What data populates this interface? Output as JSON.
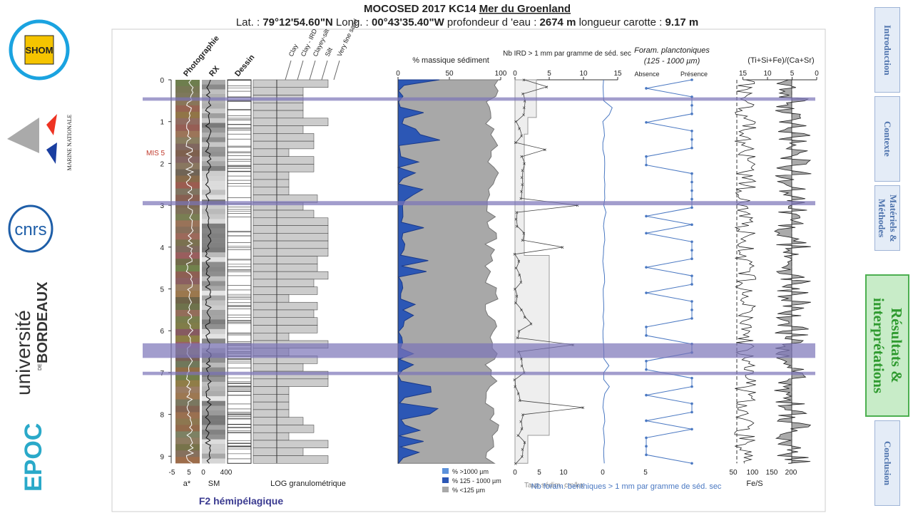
{
  "header": {
    "title_parts": [
      "MOCOSED 2017 KC14 ",
      "Mer du Groenland"
    ],
    "subtitle_parts": [
      "Lat. : ",
      "79°12'54.60\"N",
      " Long. : ",
      "00°43'35.40\"W",
      " profondeur d 'eau : ",
      "2674 m",
      " longueur carotte : ",
      "9.17 m"
    ]
  },
  "logos": {
    "shom": "SHOM",
    "marine": "MARINE NATIONALE",
    "cnrs": "cnrs",
    "univ": "université",
    "univ_de": "DE",
    "bordeaux": "BORDEAUX",
    "epoc": "EPOC"
  },
  "nav": [
    {
      "label": "Introduction"
    },
    {
      "label": "Contexte"
    },
    {
      "label": "Matériels & Méthodes"
    },
    {
      "label": "Résultats & interprétations"
    },
    {
      "label": "Conclusion"
    }
  ],
  "figure": {
    "depth_ticks": [
      0,
      1,
      2,
      3,
      4,
      5,
      6,
      7,
      8,
      9
    ],
    "mis": "MIS 5",
    "columns": {
      "photo": "Photographie",
      "rx": "RX",
      "dessin": "Dessin"
    },
    "grain": [
      "Clay",
      "Clay - IRD",
      "Clayey-silt",
      "Silt",
      "Very fine sand"
    ],
    "astar_ticks": [
      -5,
      5
    ],
    "astar_label": "a*",
    "sm_ticks": [
      0,
      400
    ],
    "sm_label": "SM",
    "log_label": "LOG granulométrique",
    "sed": {
      "title": "% massique sédiment",
      "ticks": [
        0,
        50,
        100
      ],
      "legend": [
        "% >1000 µm",
        "% 125 - 1000 µm",
        "% <125 µm"
      ]
    },
    "ird": {
      "title": "Nb IRD > 1 mm par gramme de séd. sec",
      "ticks": [
        0,
        5,
        10,
        15
      ],
      "bottom_ticks": [
        0,
        5,
        10
      ],
      "rate_label": "Taux sédim. cm/ka",
      "benth_ticks": [
        0,
        5
      ],
      "benth_label": "Nb foram. benthiques > 1 mm par gramme de séd. sec"
    },
    "foram": {
      "title": "Foram. planctoniques",
      "subtitle": "(125 - 1000 µm)",
      "absence": "Absence",
      "presence": "Présence"
    },
    "xrf": {
      "title": "(Ti+Si+Fe)/(Ca+Sr)",
      "ticks": [
        15,
        10,
        5,
        0
      ],
      "bottom_ticks": [
        50,
        100,
        150,
        200
      ],
      "bottom_label": "Fe/S"
    },
    "facies": "F2 hémipélagique"
  }
}
